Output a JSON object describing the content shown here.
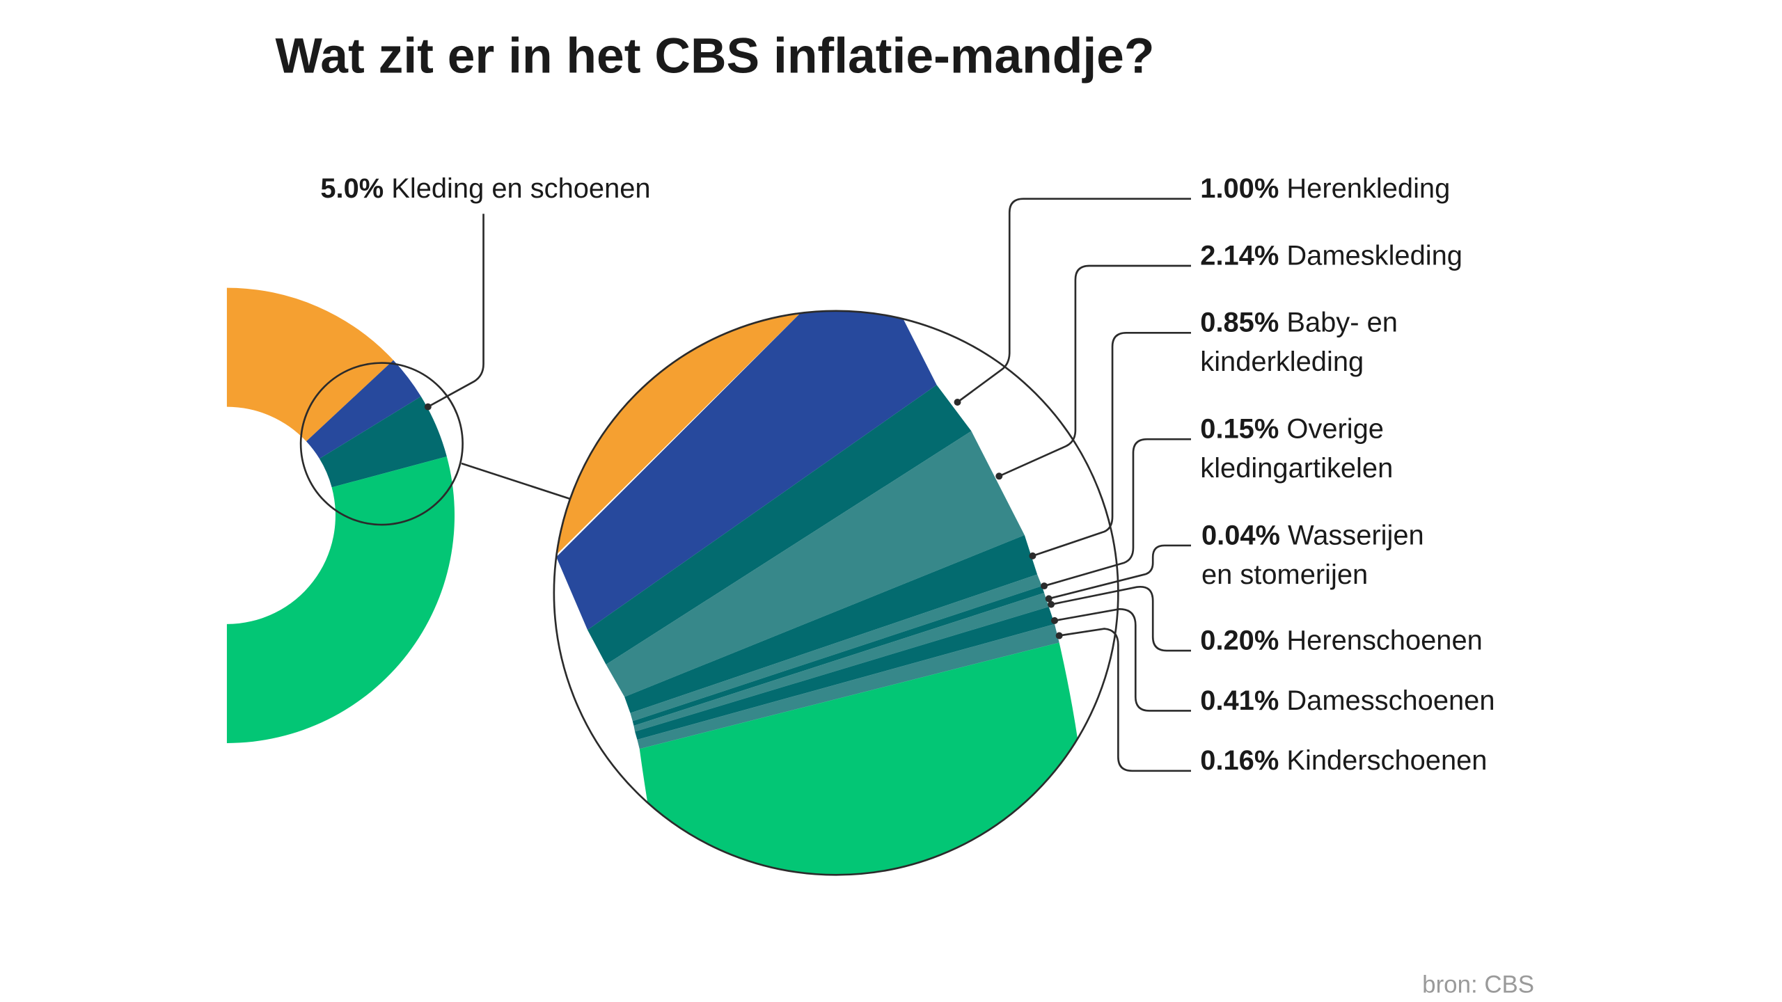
{
  "title": "Wat zit er in het CBS inflatie-mandje?",
  "source": "bron: CBS",
  "colors": {
    "orange": "#F5A031",
    "blue": "#27499D",
    "dark_teal": "#036B6F",
    "light_teal": "#37888A",
    "green": "#03C675",
    "line": "#2b2b2b"
  },
  "chart_data": {
    "type": "pie",
    "style": "donut with magnified detail",
    "main_callout": {
      "pct": "5.0%",
      "label": "Kleding en schoenen",
      "value": 5.0
    },
    "detail": [
      {
        "pct": "1.00%",
        "label": "Herenkleding",
        "value": 1.0,
        "color": "dark_teal"
      },
      {
        "pct": "2.14%",
        "label": "Dameskleding",
        "value": 2.14,
        "color": "light_teal"
      },
      {
        "pct": "0.85%",
        "label": "Baby- en",
        "label2": "kinderkleding",
        "value": 0.85,
        "color": "dark_teal"
      },
      {
        "pct": "0.15%",
        "label": "Overige",
        "label2": "kledingartikelen",
        "value": 0.15,
        "color": "light_teal"
      },
      {
        "pct": "0.04%",
        "label": "Wasserijen",
        "label2": "en stomerijen",
        "value": 0.04,
        "color": "dark_teal"
      },
      {
        "pct": "0.20%",
        "label": "Herenschoenen",
        "value": 0.2,
        "color": "light_teal"
      },
      {
        "pct": "0.41%",
        "label": "Damesschoenen",
        "value": 0.41,
        "color": "dark_teal"
      },
      {
        "pct": "0.16%",
        "label": "Kinderschoenen",
        "value": 0.16,
        "color": "light_teal"
      }
    ]
  }
}
